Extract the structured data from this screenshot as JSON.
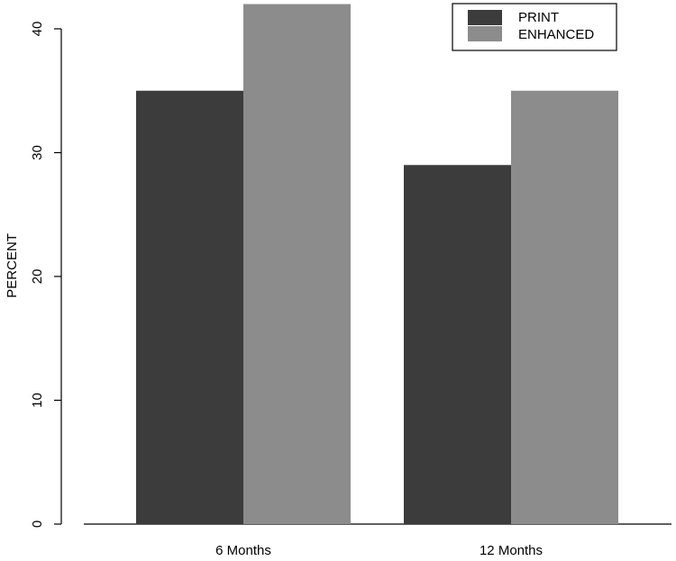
{
  "chart_data": {
    "type": "bar",
    "title": "",
    "xlabel": "",
    "ylabel": "PERCENT",
    "categories": [
      "6 Months",
      "12 Months"
    ],
    "series": [
      {
        "name": "PRINT",
        "values": [
          35,
          29
        ],
        "color": "#3c3c3c"
      },
      {
        "name": "ENHANCED",
        "values": [
          42,
          35
        ],
        "color": "#8c8c8c"
      }
    ],
    "ylim": [
      0,
      42
    ],
    "yticks": [
      0,
      10,
      20,
      30,
      40
    ],
    "ytick_labels": [
      "0",
      "10",
      "20",
      "30",
      "40"
    ],
    "grid": false,
    "legend": {
      "position": "top-right",
      "entries": [
        "PRINT",
        "ENHANCED"
      ]
    }
  }
}
